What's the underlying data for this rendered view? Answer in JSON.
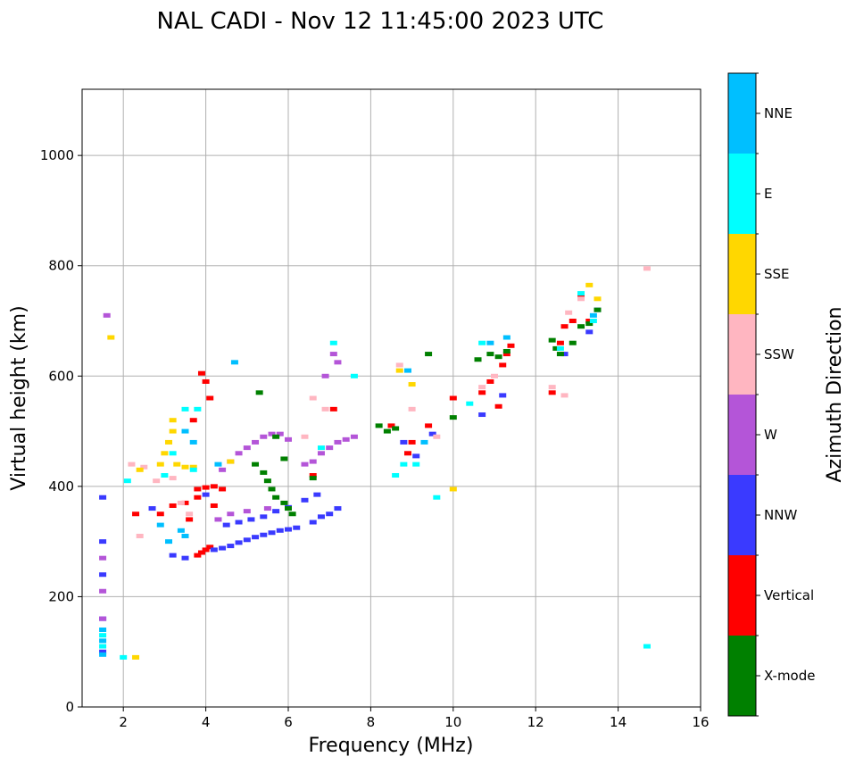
{
  "chart_data": {
    "type": "scatter",
    "title": "NAL CADI - Nov 12 11:45:00 2023 UTC",
    "xlabel": "Frequency (MHz)",
    "ylabel": "Virtual height (km)",
    "xlim": [
      1,
      16
    ],
    "ylim": [
      0,
      1120
    ],
    "xticks": [
      2,
      4,
      6,
      8,
      10,
      12,
      14,
      16
    ],
    "yticks": [
      0,
      200,
      400,
      600,
      800,
      1000
    ],
    "grid": true,
    "colorbar": {
      "label": "Azimuth Direction",
      "categories": [
        {
          "name": "X-mode",
          "color": "#008000"
        },
        {
          "name": "Vertical",
          "color": "#ff0000"
        },
        {
          "name": "NNW",
          "color": "#3a3aff"
        },
        {
          "name": "W",
          "color": "#b455d8"
        },
        {
          "name": "SSW",
          "color": "#ffb6c1"
        },
        {
          "name": "SSE",
          "color": "#ffd700"
        },
        {
          "name": "E",
          "color": "#00ffff"
        },
        {
          "name": "NNE",
          "color": "#00bfff"
        }
      ]
    },
    "series": [
      {
        "name": "Vertical",
        "color": "#ff0000",
        "points": [
          [
            3.8,
            275
          ],
          [
            3.9,
            280
          ],
          [
            4.0,
            285
          ],
          [
            4.1,
            290
          ],
          [
            3.8,
            395
          ],
          [
            4.0,
            398
          ],
          [
            4.2,
            400
          ],
          [
            4.4,
            395
          ],
          [
            2.9,
            350
          ],
          [
            3.2,
            365
          ],
          [
            3.5,
            370
          ],
          [
            3.8,
            380
          ],
          [
            4.0,
            590
          ],
          [
            3.9,
            605
          ],
          [
            4.1,
            560
          ],
          [
            3.7,
            520
          ],
          [
            6.6,
            420
          ],
          [
            8.9,
            460
          ],
          [
            9.0,
            480
          ],
          [
            10.0,
            560
          ],
          [
            10.7,
            570
          ],
          [
            10.9,
            590
          ],
          [
            11.2,
            620
          ],
          [
            11.3,
            640
          ],
          [
            11.4,
            655
          ],
          [
            11.1,
            545
          ],
          [
            12.4,
            570
          ],
          [
            12.6,
            660
          ],
          [
            12.7,
            690
          ],
          [
            12.9,
            700
          ],
          [
            13.1,
            745
          ],
          [
            13.3,
            700
          ],
          [
            2.3,
            350
          ],
          [
            3.6,
            340
          ],
          [
            4.2,
            365
          ],
          [
            7.1,
            540
          ],
          [
            8.5,
            510
          ],
          [
            9.4,
            510
          ]
        ]
      },
      {
        "name": "NNW",
        "color": "#3a3aff",
        "points": [
          [
            4.2,
            285
          ],
          [
            4.4,
            288
          ],
          [
            4.6,
            292
          ],
          [
            4.8,
            298
          ],
          [
            5.0,
            303
          ],
          [
            5.2,
            308
          ],
          [
            5.4,
            312
          ],
          [
            5.6,
            316
          ],
          [
            5.8,
            320
          ],
          [
            6.0,
            322
          ],
          [
            6.2,
            325
          ],
          [
            6.6,
            335
          ],
          [
            6.8,
            345
          ],
          [
            7.0,
            350
          ],
          [
            7.2,
            360
          ],
          [
            4.5,
            330
          ],
          [
            4.8,
            335
          ],
          [
            5.1,
            340
          ],
          [
            5.4,
            345
          ],
          [
            5.7,
            355
          ],
          [
            6.0,
            362
          ],
          [
            6.4,
            375
          ],
          [
            6.7,
            385
          ],
          [
            3.5,
            270
          ],
          [
            3.2,
            275
          ],
          [
            1.5,
            380
          ],
          [
            1.5,
            300
          ],
          [
            1.5,
            240
          ],
          [
            1.5,
            160
          ],
          [
            1.5,
            100
          ],
          [
            8.8,
            480
          ],
          [
            9.1,
            455
          ],
          [
            9.5,
            495
          ],
          [
            10.7,
            530
          ],
          [
            11.2,
            565
          ],
          [
            12.7,
            640
          ],
          [
            13.3,
            680
          ],
          [
            13.5,
            720
          ],
          [
            2.7,
            360
          ],
          [
            4.0,
            385
          ]
        ]
      },
      {
        "name": "W",
        "color": "#b455d8",
        "points": [
          [
            4.4,
            430
          ],
          [
            4.6,
            445
          ],
          [
            4.8,
            460
          ],
          [
            5.0,
            470
          ],
          [
            5.2,
            480
          ],
          [
            5.4,
            490
          ],
          [
            5.6,
            495
          ],
          [
            5.8,
            495
          ],
          [
            6.0,
            485
          ],
          [
            4.3,
            340
          ],
          [
            4.6,
            350
          ],
          [
            5.0,
            355
          ],
          [
            5.5,
            360
          ],
          [
            6.4,
            440
          ],
          [
            6.6,
            445
          ],
          [
            6.8,
            460
          ],
          [
            7.0,
            470
          ],
          [
            7.2,
            480
          ],
          [
            7.4,
            485
          ],
          [
            7.6,
            490
          ],
          [
            7.1,
            640
          ],
          [
            7.2,
            625
          ],
          [
            6.9,
            600
          ],
          [
            1.5,
            210
          ],
          [
            1.5,
            270
          ],
          [
            1.5,
            160
          ],
          [
            1.6,
            710
          ]
        ]
      },
      {
        "name": "X-mode",
        "color": "#008000",
        "points": [
          [
            5.2,
            440
          ],
          [
            5.4,
            425
          ],
          [
            5.5,
            410
          ],
          [
            5.6,
            395
          ],
          [
            5.7,
            380
          ],
          [
            5.9,
            370
          ],
          [
            6.0,
            360
          ],
          [
            6.1,
            350
          ],
          [
            5.3,
            570
          ],
          [
            5.7,
            490
          ],
          [
            5.9,
            450
          ],
          [
            6.6,
            415
          ],
          [
            8.2,
            510
          ],
          [
            8.4,
            500
          ],
          [
            8.6,
            505
          ],
          [
            9.4,
            640
          ],
          [
            10.6,
            630
          ],
          [
            10.9,
            640
          ],
          [
            11.1,
            635
          ],
          [
            11.3,
            645
          ],
          [
            12.4,
            665
          ],
          [
            12.5,
            650
          ],
          [
            12.6,
            640
          ],
          [
            12.9,
            660
          ],
          [
            13.1,
            690
          ],
          [
            13.3,
            695
          ],
          [
            13.5,
            720
          ],
          [
            10.0,
            525
          ]
        ]
      },
      {
        "name": "SSW",
        "color": "#ffb6c1",
        "points": [
          [
            2.2,
            440
          ],
          [
            2.5,
            435
          ],
          [
            2.8,
            410
          ],
          [
            3.2,
            415
          ],
          [
            2.4,
            310
          ],
          [
            3.4,
            370
          ],
          [
            3.6,
            350
          ],
          [
            6.4,
            490
          ],
          [
            6.6,
            560
          ],
          [
            6.9,
            540
          ],
          [
            8.7,
            620
          ],
          [
            9.0,
            540
          ],
          [
            9.6,
            490
          ],
          [
            10.7,
            580
          ],
          [
            11.0,
            600
          ],
          [
            12.4,
            580
          ],
          [
            12.7,
            565
          ],
          [
            12.8,
            715
          ],
          [
            13.1,
            740
          ],
          [
            14.7,
            795
          ]
        ]
      },
      {
        "name": "SSE",
        "color": "#ffd700",
        "points": [
          [
            2.9,
            440
          ],
          [
            3.0,
            460
          ],
          [
            3.1,
            480
          ],
          [
            3.2,
            500
          ],
          [
            3.2,
            520
          ],
          [
            3.3,
            440
          ],
          [
            3.5,
            435
          ],
          [
            3.7,
            435
          ],
          [
            4.6,
            445
          ],
          [
            2.4,
            430
          ],
          [
            1.7,
            670
          ],
          [
            2.3,
            90
          ],
          [
            8.7,
            610
          ],
          [
            9.0,
            585
          ],
          [
            10.0,
            395
          ],
          [
            13.3,
            765
          ],
          [
            13.5,
            740
          ]
        ]
      },
      {
        "name": "E",
        "color": "#00ffff",
        "points": [
          [
            1.5,
            130
          ],
          [
            1.5,
            110
          ],
          [
            2.0,
            90
          ],
          [
            2.1,
            410
          ],
          [
            3.0,
            420
          ],
          [
            3.2,
            460
          ],
          [
            3.7,
            430
          ],
          [
            3.5,
            540
          ],
          [
            3.8,
            540
          ],
          [
            6.8,
            470
          ],
          [
            7.1,
            660
          ],
          [
            7.6,
            600
          ],
          [
            8.6,
            420
          ],
          [
            8.8,
            440
          ],
          [
            9.1,
            440
          ],
          [
            9.6,
            380
          ],
          [
            10.4,
            550
          ],
          [
            10.7,
            660
          ],
          [
            12.6,
            650
          ],
          [
            13.1,
            750
          ],
          [
            13.4,
            700
          ],
          [
            14.7,
            110
          ]
        ]
      },
      {
        "name": "NNE",
        "color": "#00bfff",
        "points": [
          [
            1.5,
            140
          ],
          [
            1.5,
            120
          ],
          [
            1.5,
            95
          ],
          [
            2.9,
            330
          ],
          [
            3.1,
            300
          ],
          [
            3.4,
            320
          ],
          [
            3.5,
            500
          ],
          [
            3.7,
            480
          ],
          [
            3.5,
            310
          ],
          [
            4.7,
            625
          ],
          [
            4.3,
            440
          ],
          [
            8.9,
            610
          ],
          [
            9.3,
            480
          ],
          [
            10.9,
            660
          ],
          [
            11.3,
            670
          ],
          [
            13.4,
            710
          ]
        ]
      }
    ]
  }
}
